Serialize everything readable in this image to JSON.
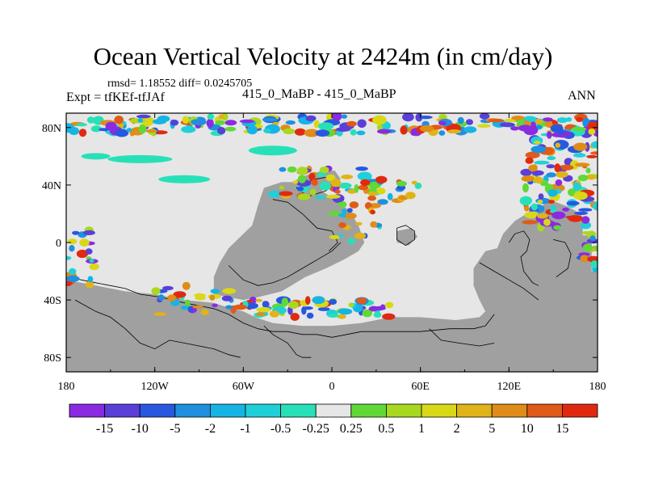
{
  "title": "Ocean Vertical Velocity at 2424m (in cm/day)",
  "stats": "rmsd= 1.18552 diff= 0.0245705",
  "expt": "Expt = tfKEf-tfJAf",
  "cases": "415_0_MaBP - 415_0_MaBP",
  "season": "ANN",
  "colors": {
    "land": "#a0a0a0",
    "near_zero": "#e6e6e6",
    "bins": [
      "#8a2be2",
      "#5a3fd8",
      "#2858e0",
      "#1f8fe0",
      "#16b4e4",
      "#20d0d8",
      "#28e0b8",
      "#e6e6e6",
      "#60d838",
      "#a8d820",
      "#d8d818",
      "#e0b418",
      "#e08c18",
      "#e05a18",
      "#e02a10"
    ]
  },
  "chart_data": {
    "type": "heatmap",
    "title": "Ocean Vertical Velocity at 2424m (in cm/day)",
    "x_ticks": [
      "180",
      "120W",
      "60W",
      "0",
      "60E",
      "120E",
      "180"
    ],
    "x_range": [
      -180,
      180
    ],
    "y_ticks": [
      "80N",
      "40N",
      "0",
      "40S",
      "80S"
    ],
    "y_range": [
      -90,
      90
    ],
    "colorbar_labels": [
      "-15",
      "-10",
      "-5",
      "-2",
      "-1",
      "-0.5",
      "-0.25",
      "0.25",
      "0.5",
      "1",
      "2",
      "5",
      "10",
      "15"
    ]
  }
}
